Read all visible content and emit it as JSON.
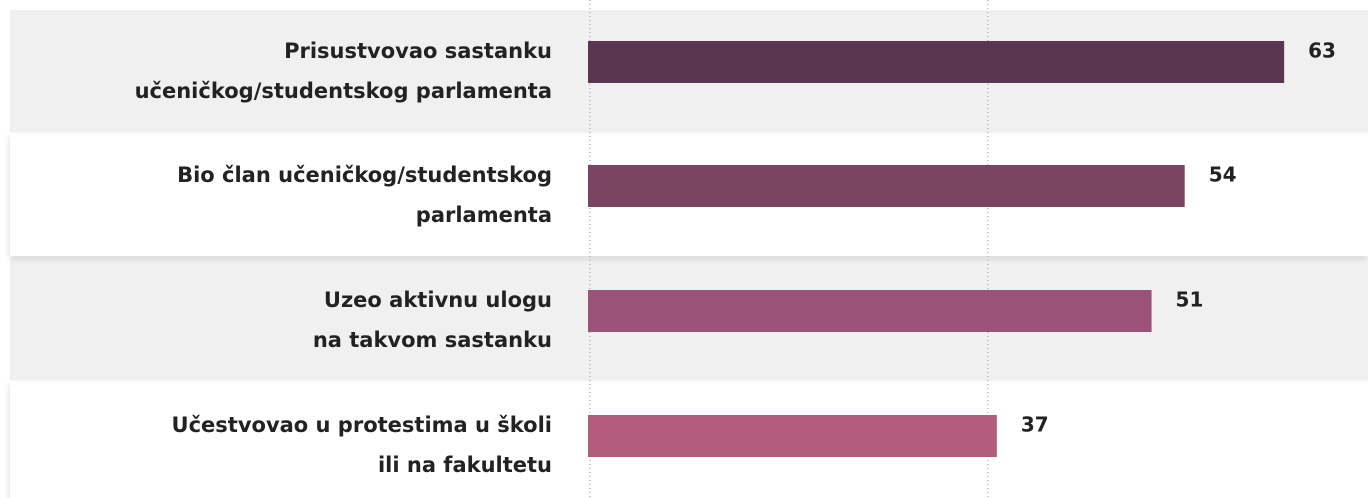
{
  "chart_data": {
    "type": "hbar",
    "categories": [
      [
        "Prisustvovao sastanku",
        "učeničkog/studentskog parlamenta"
      ],
      [
        "Bio član učeničkog/studentskog",
        "parlamenta"
      ],
      [
        "Uzeo aktivnu ulogu",
        "na takvom sastanku"
      ],
      [
        "Učestvovao u protestima u školi",
        "ili na fakultetu"
      ]
    ],
    "values": [
      63,
      54,
      51,
      37
    ],
    "colors": [
      "#5c3650",
      "#7b4562",
      "#9a5277",
      "#b35d7e"
    ],
    "xlim": [
      0,
      72
    ],
    "xticks": [
      0,
      36
    ],
    "grid": true
  }
}
